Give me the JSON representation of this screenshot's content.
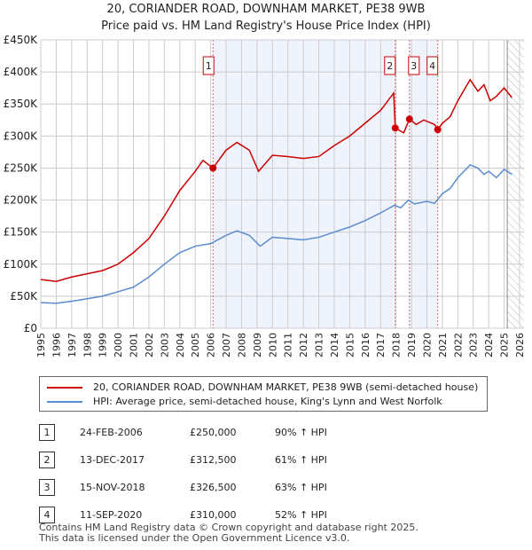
{
  "title": "20, CORIANDER ROAD, DOWNHAM MARKET, PE38 9WB",
  "subtitle": "Price paid vs. HM Land Registry's House Price Index (HPI)",
  "legend": {
    "red": "20, CORIANDER ROAD, DOWNHAM MARKET, PE38 9WB (semi-detached house)",
    "blue": "HPI: Average price, semi-detached house, King's Lynn and West Norfolk"
  },
  "sales": [
    {
      "num": "1",
      "date": "24-FEB-2006",
      "price": "£250,000",
      "hpi": "90% ↑ HPI"
    },
    {
      "num": "2",
      "date": "13-DEC-2017",
      "price": "£312,500",
      "hpi": "61% ↑ HPI"
    },
    {
      "num": "3",
      "date": "15-NOV-2018",
      "price": "£326,500",
      "hpi": "63% ↑ HPI"
    },
    {
      "num": "4",
      "date": "11-SEP-2020",
      "price": "£310,000",
      "hpi": "52% ↑ HPI"
    }
  ],
  "footer": [
    "Contains HM Land Registry data © Crown copyright and database right 2025.",
    "This data is licensed under the Open Government Licence v3.0."
  ],
  "chart_data": {
    "type": "line",
    "xlim": [
      1995,
      2026
    ],
    "ylim": [
      0,
      450000
    ],
    "yticks": [
      {
        "v": 0,
        "l": "£0"
      },
      {
        "v": 50000,
        "l": "£50K"
      },
      {
        "v": 100000,
        "l": "£100K"
      },
      {
        "v": 150000,
        "l": "£150K"
      },
      {
        "v": 200000,
        "l": "£200K"
      },
      {
        "v": 250000,
        "l": "£250K"
      },
      {
        "v": 300000,
        "l": "£300K"
      },
      {
        "v": 350000,
        "l": "£350K"
      },
      {
        "v": 400000,
        "l": "£400K"
      },
      {
        "v": 450000,
        "l": "£450K"
      }
    ],
    "xticks": [
      "1995",
      "1996",
      "1997",
      "1998",
      "1999",
      "2000",
      "2001",
      "2002",
      "2003",
      "2004",
      "2005",
      "2006",
      "2007",
      "2008",
      "2009",
      "2010",
      "2011",
      "2012",
      "2013",
      "2014",
      "2015",
      "2016",
      "2017",
      "2018",
      "2019",
      "2020",
      "2021",
      "2022",
      "2023",
      "2024",
      "2025",
      "2026"
    ],
    "shaded": [
      [
        2006.15,
        2017.95
      ],
      [
        2018.87,
        2020.7
      ]
    ],
    "hatched_from": 2025.2,
    "sale_points": [
      {
        "x": 2006.15,
        "y": 250000
      },
      {
        "x": 2017.95,
        "y": 312500
      },
      {
        "x": 2018.87,
        "y": 326500
      },
      {
        "x": 2020.7,
        "y": 310000
      }
    ],
    "series": [
      {
        "name": "property",
        "color": "#cc0000",
        "points": [
          [
            1995,
            76000
          ],
          [
            1996,
            73000
          ],
          [
            1997,
            80000
          ],
          [
            1998,
            85000
          ],
          [
            1999,
            90000
          ],
          [
            2000,
            100000
          ],
          [
            2001,
            118000
          ],
          [
            2002,
            140000
          ],
          [
            2003,
            175000
          ],
          [
            2004,
            215000
          ],
          [
            2005,
            245000
          ],
          [
            2005.5,
            262000
          ],
          [
            2006.15,
            250000
          ],
          [
            2007,
            278000
          ],
          [
            2007.7,
            290000
          ],
          [
            2008.5,
            278000
          ],
          [
            2009.1,
            245000
          ],
          [
            2010,
            270000
          ],
          [
            2011,
            268000
          ],
          [
            2012,
            265000
          ],
          [
            2013,
            268000
          ],
          [
            2014,
            285000
          ],
          [
            2015,
            300000
          ],
          [
            2016,
            320000
          ],
          [
            2017,
            340000
          ],
          [
            2017.85,
            367000
          ],
          [
            2017.95,
            312500
          ],
          [
            2018.5,
            305000
          ],
          [
            2018.87,
            326500
          ],
          [
            2019.3,
            318000
          ],
          [
            2019.8,
            325000
          ],
          [
            2020.5,
            318000
          ],
          [
            2020.7,
            310000
          ],
          [
            2021,
            320000
          ],
          [
            2021.5,
            330000
          ],
          [
            2022,
            355000
          ],
          [
            2022.8,
            388000
          ],
          [
            2023.3,
            370000
          ],
          [
            2023.7,
            380000
          ],
          [
            2024.1,
            355000
          ],
          [
            2024.5,
            362000
          ],
          [
            2025,
            375000
          ],
          [
            2025.5,
            360000
          ]
        ]
      },
      {
        "name": "hpi",
        "color": "#5b8ccf",
        "points": [
          [
            1995,
            40000
          ],
          [
            1996,
            39000
          ],
          [
            1997,
            42000
          ],
          [
            1998,
            46000
          ],
          [
            1999,
            50000
          ],
          [
            2000,
            57000
          ],
          [
            2001,
            64000
          ],
          [
            2002,
            80000
          ],
          [
            2003,
            100000
          ],
          [
            2004,
            118000
          ],
          [
            2005,
            128000
          ],
          [
            2006,
            132000
          ],
          [
            2007,
            145000
          ],
          [
            2007.7,
            152000
          ],
          [
            2008.5,
            145000
          ],
          [
            2009.2,
            128000
          ],
          [
            2010,
            142000
          ],
          [
            2011,
            140000
          ],
          [
            2012,
            138000
          ],
          [
            2013,
            142000
          ],
          [
            2014,
            150000
          ],
          [
            2015,
            158000
          ],
          [
            2016,
            168000
          ],
          [
            2017,
            180000
          ],
          [
            2017.9,
            192000
          ],
          [
            2018.3,
            188000
          ],
          [
            2018.8,
            200000
          ],
          [
            2019.2,
            194000
          ],
          [
            2020,
            198000
          ],
          [
            2020.5,
            195000
          ],
          [
            2021,
            210000
          ],
          [
            2021.5,
            218000
          ],
          [
            2022,
            235000
          ],
          [
            2022.8,
            255000
          ],
          [
            2023.3,
            250000
          ],
          [
            2023.7,
            240000
          ],
          [
            2024,
            245000
          ],
          [
            2024.5,
            235000
          ],
          [
            2025,
            248000
          ],
          [
            2025.5,
            240000
          ]
        ]
      }
    ]
  }
}
